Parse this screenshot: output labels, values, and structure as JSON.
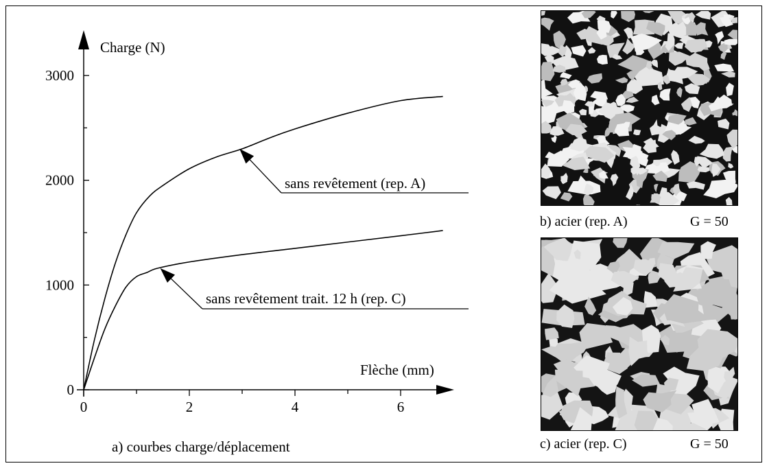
{
  "figure": {
    "chart_data": {
      "type": "line",
      "ylabel": "Charge (N)",
      "xlabel": "Flèche (mm)",
      "xlim": [
        0,
        6.8
      ],
      "ylim": [
        0,
        3000
      ],
      "xticks": [
        "0",
        "2",
        "4",
        "6"
      ],
      "yticks": [
        "0",
        "1000",
        "2000",
        "3000"
      ],
      "series": [
        {
          "name": "sans revêtement (rep. A)",
          "x": [
            0,
            0.2,
            0.4,
            0.6,
            0.8,
            1.0,
            1.25,
            1.5,
            2.0,
            2.5,
            3.0,
            3.5,
            4.0,
            5.0,
            6.0,
            6.8
          ],
          "y": [
            0,
            470,
            870,
            1210,
            1480,
            1690,
            1850,
            1950,
            2110,
            2220,
            2300,
            2400,
            2490,
            2640,
            2760,
            2800
          ]
        },
        {
          "name": "sans revêtement  trait. 12 h (rep. C)",
          "x": [
            0,
            0.2,
            0.4,
            0.6,
            0.8,
            1.0,
            1.2,
            1.4,
            2.0,
            3.0,
            4.0,
            5.0,
            6.0,
            6.8
          ],
          "y": [
            0,
            300,
            580,
            800,
            980,
            1080,
            1120,
            1160,
            1220,
            1290,
            1350,
            1410,
            1470,
            1520
          ]
        }
      ],
      "annotations": [
        {
          "text": "sans revêtement (rep. A)",
          "x": 2.95,
          "y": 2300
        },
        {
          "text": "sans revêtement  trait. 12 h (rep. C)",
          "x": 1.45,
          "y": 1160
        }
      ]
    },
    "caption_a": "a) courbes charge/déplacement",
    "caption_b": "b) acier (rep. A)",
    "caption_b_mag": "G = 50",
    "caption_c": "c) acier (rep. C)",
    "caption_c_mag": "G = 50"
  }
}
